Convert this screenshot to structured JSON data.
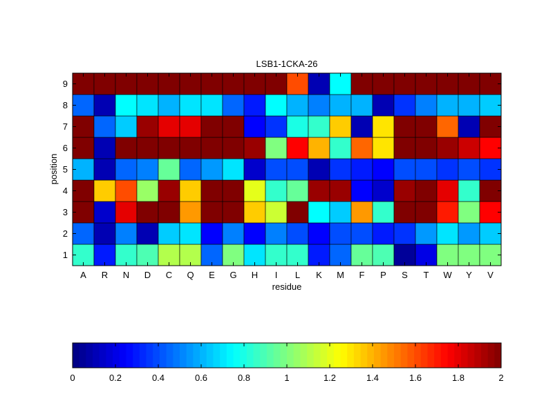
{
  "chart_data": [
    {
      "type": "heatmap",
      "title": "LSB1-1CKA-26",
      "xlabel": "residue",
      "ylabel": "position",
      "x_categories": [
        "A",
        "R",
        "N",
        "D",
        "C",
        "Q",
        "E",
        "G",
        "H",
        "I",
        "L",
        "K",
        "M",
        "F",
        "P",
        "S",
        "T",
        "W",
        "Y",
        "V"
      ],
      "y_categories": [
        "1",
        "2",
        "3",
        "4",
        "5",
        "6",
        "7",
        "8",
        "9"
      ],
      "values": [
        [
          0.85,
          0.3,
          0.85,
          0.9,
          1.1,
          1.1,
          0.45,
          1.0,
          0.7,
          0.85,
          0.85,
          0.3,
          0.45,
          0.95,
          0.9,
          0.05,
          0.2,
          1.0,
          1.0,
          1.0
        ],
        [
          0.45,
          0.1,
          0.5,
          0.1,
          0.65,
          0.7,
          0.25,
          0.5,
          0.25,
          0.5,
          0.4,
          0.25,
          0.4,
          0.4,
          0.3,
          0.35,
          0.55,
          0.7,
          0.55,
          0.65
        ],
        [
          2.0,
          0.15,
          1.8,
          2.0,
          2.0,
          1.45,
          2.0,
          2.0,
          1.35,
          1.15,
          2.0,
          0.75,
          0.65,
          1.45,
          0.85,
          2.0,
          2.0,
          1.7,
          1.0,
          1.75
        ],
        [
          2.0,
          1.35,
          1.6,
          1.05,
          1.95,
          1.35,
          2.0,
          2.0,
          1.2,
          0.85,
          0.95,
          1.95,
          1.95,
          0.25,
          0.15,
          1.95,
          2.0,
          1.8,
          0.85,
          2.0
        ],
        [
          0.6,
          0.1,
          0.45,
          0.5,
          0.95,
          0.45,
          0.55,
          0.7,
          0.15,
          0.4,
          0.4,
          0.1,
          0.35,
          0.3,
          0.25,
          0.4,
          0.4,
          0.35,
          0.4,
          0.35
        ],
        [
          2.0,
          0.1,
          2.0,
          2.0,
          2.0,
          2.0,
          2.0,
          2.0,
          1.95,
          1.0,
          1.75,
          1.4,
          0.85,
          1.55,
          1.3,
          2.0,
          2.0,
          1.95,
          1.85,
          1.75
        ],
        [
          2.0,
          0.45,
          0.65,
          1.95,
          1.8,
          1.8,
          2.0,
          2.0,
          0.25,
          0.35,
          0.8,
          0.85,
          1.35,
          0.1,
          1.3,
          2.0,
          2.0,
          1.55,
          0.1,
          2.0
        ],
        [
          0.45,
          0.1,
          0.75,
          0.7,
          0.6,
          0.7,
          0.7,
          0.45,
          0.3,
          0.75,
          0.6,
          0.5,
          0.6,
          0.6,
          0.1,
          0.35,
          0.5,
          0.6,
          0.6,
          0.65
        ],
        [
          2.0,
          2.0,
          2.0,
          2.0,
          2.0,
          2.0,
          2.0,
          2.0,
          2.0,
          2.0,
          1.6,
          0.1,
          0.75,
          2.0,
          2.0,
          2.0,
          2.0,
          2.0,
          2.0,
          2.0
        ]
      ],
      "clim": [
        0,
        2
      ],
      "colormap": "jet"
    },
    {
      "type": "colorbar",
      "orientation": "horizontal",
      "range": [
        0,
        2
      ],
      "ticks": [
        0,
        0.2,
        0.4,
        0.6,
        0.8,
        1,
        1.2,
        1.4,
        1.6,
        1.8,
        2
      ],
      "tick_labels": [
        "0",
        "0.2",
        "0.4",
        "0.6",
        "0.8",
        "1",
        "1.2",
        "1.4",
        "1.6",
        "1.8",
        "2"
      ]
    }
  ]
}
